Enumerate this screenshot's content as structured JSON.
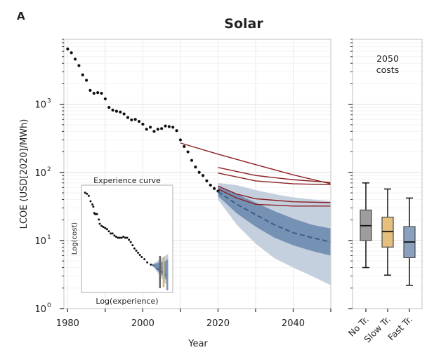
{
  "panel_label": "A",
  "chart_data": [
    {
      "type": "scatter",
      "title": "Solar",
      "xlabel": "Year",
      "ylabel": "LCOE (USD[2020]/MWh)",
      "xlim": [
        1979,
        2050
      ],
      "ylim": [
        1,
        9000
      ],
      "y_scale": "log",
      "grid": true,
      "x_ticks": [
        1980,
        2000,
        2020,
        2040
      ],
      "y_ticks": [
        {
          "value": 1,
          "base": "10",
          "exp": "0"
        },
        {
          "value": 10,
          "base": "10",
          "exp": "1"
        },
        {
          "value": 100,
          "base": "10",
          "exp": "2"
        },
        {
          "value": 1000,
          "base": "10",
          "exp": "3"
        }
      ],
      "historical_points": [
        [
          1980,
          6500
        ],
        [
          1981,
          5700
        ],
        [
          1982,
          4600
        ],
        [
          1983,
          3700
        ],
        [
          1984,
          2700
        ],
        [
          1985,
          2250
        ],
        [
          1986,
          1600
        ],
        [
          1987,
          1450
        ],
        [
          1988,
          1480
        ],
        [
          1989,
          1450
        ],
        [
          1990,
          1200
        ],
        [
          1991,
          900
        ],
        [
          1992,
          820
        ],
        [
          1993,
          790
        ],
        [
          1994,
          770
        ],
        [
          1995,
          720
        ],
        [
          1996,
          640
        ],
        [
          1997,
          590
        ],
        [
          1998,
          600
        ],
        [
          1999,
          560
        ],
        [
          2000,
          510
        ],
        [
          2001,
          430
        ],
        [
          2002,
          460
        ],
        [
          2003,
          400
        ],
        [
          2004,
          430
        ],
        [
          2005,
          440
        ],
        [
          2006,
          480
        ],
        [
          2007,
          470
        ],
        [
          2008,
          460
        ],
        [
          2009,
          410
        ],
        [
          2010,
          300
        ],
        [
          2011,
          240
        ],
        [
          2012,
          200
        ],
        [
          2013,
          150
        ],
        [
          2014,
          120
        ],
        [
          2015,
          100
        ],
        [
          2016,
          90
        ],
        [
          2017,
          75
        ],
        [
          2018,
          65
        ],
        [
          2019,
          58
        ],
        [
          2020,
          53
        ]
      ],
      "projection_median": [
        [
          2020,
          52
        ],
        [
          2025,
          34
        ],
        [
          2030,
          24
        ],
        [
          2035,
          17
        ],
        [
          2040,
          13
        ],
        [
          2045,
          11
        ],
        [
          2050,
          9.5
        ]
      ],
      "band_inner": {
        "x": [
          2020,
          2025,
          2030,
          2035,
          2040,
          2045,
          2050
        ],
        "upper": [
          62,
          48,
          36,
          27,
          21,
          17,
          15
        ],
        "lower": [
          45,
          25,
          16,
          11,
          8.5,
          7,
          6
        ]
      },
      "band_outer": {
        "x": [
          2020,
          2025,
          2030,
          2035,
          2040,
          2045,
          2050
        ],
        "upper": [
          70,
          65,
          55,
          48,
          43,
          40,
          38
        ],
        "lower": [
          40,
          17,
          9,
          5.5,
          4,
          3,
          2.2
        ]
      },
      "red_scenarios": [
        [
          [
            2010,
            270
          ],
          [
            2020,
            185
          ],
          [
            2030,
            130
          ],
          [
            2040,
            92
          ],
          [
            2050,
            68
          ]
        ],
        [
          [
            2020,
            118
          ],
          [
            2030,
            90
          ],
          [
            2040,
            78
          ],
          [
            2050,
            71
          ]
        ],
        [
          [
            2020,
            98
          ],
          [
            2030,
            75
          ],
          [
            2040,
            68
          ],
          [
            2050,
            66
          ]
        ],
        [
          [
            2020,
            63
          ],
          [
            2025,
            48
          ],
          [
            2030,
            41
          ],
          [
            2040,
            37
          ],
          [
            2050,
            36
          ]
        ],
        [
          [
            2020,
            57
          ],
          [
            2025,
            42
          ],
          [
            2030,
            34
          ],
          [
            2040,
            32
          ],
          [
            2050,
            32
          ]
        ]
      ],
      "colors": {
        "points": "#111111",
        "median": "#3d5f85",
        "band_inner": "#7591b3",
        "band_outer": "#c4d0de",
        "red_lines": "#8c1f23"
      }
    },
    {
      "type": "line",
      "title": "Experience curve",
      "xlabel": "Log(experience)",
      "ylabel": "Log(cost)",
      "points": [
        [
          0.04,
          0.93
        ],
        [
          0.06,
          0.92
        ],
        [
          0.08,
          0.9
        ],
        [
          0.1,
          0.85
        ],
        [
          0.12,
          0.82
        ],
        [
          0.13,
          0.8
        ],
        [
          0.14,
          0.74
        ],
        [
          0.15,
          0.73
        ],
        [
          0.16,
          0.73
        ],
        [
          0.17,
          0.73
        ],
        [
          0.19,
          0.68
        ],
        [
          0.2,
          0.64
        ],
        [
          0.22,
          0.62
        ],
        [
          0.24,
          0.61
        ],
        [
          0.26,
          0.6
        ],
        [
          0.28,
          0.59
        ],
        [
          0.3,
          0.57
        ],
        [
          0.32,
          0.55
        ],
        [
          0.34,
          0.55
        ],
        [
          0.36,
          0.53
        ],
        [
          0.38,
          0.52
        ],
        [
          0.4,
          0.51
        ],
        [
          0.42,
          0.51
        ],
        [
          0.44,
          0.51
        ],
        [
          0.46,
          0.52
        ],
        [
          0.48,
          0.51
        ],
        [
          0.5,
          0.51
        ],
        [
          0.52,
          0.49
        ],
        [
          0.54,
          0.47
        ],
        [
          0.56,
          0.44
        ],
        [
          0.58,
          0.41
        ],
        [
          0.6,
          0.39
        ],
        [
          0.62,
          0.37
        ],
        [
          0.64,
          0.35
        ],
        [
          0.66,
          0.33
        ],
        [
          0.69,
          0.31
        ],
        [
          0.72,
          0.28
        ],
        [
          0.76,
          0.26
        ]
      ],
      "fan_start": [
        0.77,
        0.26
      ],
      "fan_end_x": 0.95,
      "fan_outer": [
        0.36,
        0.05
      ],
      "fan_inner": [
        0.3,
        0.1
      ],
      "median_end": [
        0.95,
        0.15
      ],
      "vertical_bars": [
        {
          "x": 0.86,
          "top": 0.34,
          "bottom": 0.04,
          "color": "#666666"
        },
        {
          "x": 0.9,
          "top": 0.33,
          "bottom": 0.05,
          "color": "#e0b467"
        },
        {
          "x": 0.94,
          "top": 0.31,
          "bottom": 0.02,
          "color": "#7b97b8"
        }
      ]
    },
    {
      "type": "box",
      "title": "2050\ncosts",
      "categories": [
        "No Tr.",
        "Slow Tr.",
        "Fast Tr."
      ],
      "boxes": [
        {
          "name": "No Tr.",
          "whislo": 4,
          "q1": 10,
          "med": 16.5,
          "q3": 28,
          "whishi": 70,
          "color": "#8c8c8c"
        },
        {
          "name": "Slow Tr.",
          "whislo": 3.1,
          "q1": 8,
          "med": 13.5,
          "q3": 22,
          "whishi": 57,
          "color": "#e0b467"
        },
        {
          "name": "Fast Tr.",
          "whislo": 2.2,
          "q1": 5.6,
          "med": 9.5,
          "q3": 16,
          "whishi": 42,
          "color": "#7591b3"
        }
      ],
      "ylim": [
        1,
        9000
      ],
      "y_scale": "log"
    }
  ]
}
